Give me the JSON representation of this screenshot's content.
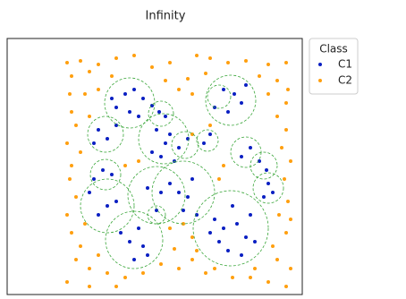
{
  "chart_data": {
    "type": "scatter",
    "title": "Infinity",
    "legend_title": "Class",
    "legend": "outside-right",
    "xlim": [
      0,
      330
    ],
    "ylim": [
      0,
      286
    ],
    "series": [
      {
        "name": "C1",
        "color": "#0a1fc2",
        "x": [
          132,
          142,
          152,
          122,
          137,
          147,
          117,
          162,
          170,
          177,
          102,
          112,
          97,
          122,
          167,
          177,
          182,
          192,
          202,
          162,
          187,
          172,
          227,
          220,
          242,
          254,
          262,
          247,
          232,
          267,
          272,
          262,
          282,
          290,
          292,
          297,
          287,
          107,
          117,
          97,
          112,
          102,
          122,
          92,
          157,
          172,
          182,
          192,
          202,
          207,
          197,
          212,
          167,
          147,
          137,
          152,
          127,
          157,
          142,
          232,
          242,
          257,
          267,
          237,
          247,
          262,
          272,
          227,
          252,
          277
        ],
        "y": [
          224,
          229,
          219,
          209,
          204,
          199,
          219,
          211,
          204,
          199,
          184,
          174,
          169,
          189,
          184,
          169,
          179,
          164,
          174,
          159,
          149,
          154,
          179,
          169,
          229,
          224,
          214,
          204,
          209,
          234,
          164,
          154,
          149,
          139,
          124,
          114,
          109,
          139,
          134,
          129,
          99,
          89,
          104,
          114,
          119,
          114,
          124,
          114,
          109,
          129,
          94,
          89,
          94,
          74,
          59,
          54,
          69,
          44,
          39,
          84,
          74,
          79,
          64,
          59,
          49,
          44,
          89,
          69,
          99,
          59
        ]
      },
      {
        "name": "C2",
        "color": "#ff9f0f",
        "x": [
          67,
          82,
          102,
          122,
          142,
          162,
          182,
          212,
          227,
          247,
          267,
          292,
          312,
          72,
          92,
          117,
          177,
          202,
          222,
          282,
          302,
          314,
          70,
          87,
          102,
          192,
          207,
          292,
          312,
          72,
          77,
          67,
          82,
          302,
          312,
          307,
          317,
          72,
          70,
          77,
          67,
          72,
          82,
          310,
          314,
          304,
          312,
          297,
          302,
          317,
          77,
          92,
          112,
          132,
          172,
          192,
          207,
          222,
          252,
          277,
          292,
          102,
          87,
          182,
          197,
          207,
          212,
          152,
          122,
          232,
          272,
          312,
          67,
          92,
          187,
          207,
          227,
          132,
          147,
          242,
          237,
          92,
          317
        ],
        "y": [
          259,
          261,
          257,
          264,
          267,
          254,
          259,
          267,
          264,
          259,
          261,
          257,
          259,
          244,
          249,
          244,
          239,
          241,
          247,
          244,
          239,
          229,
          224,
          224,
          229,
          229,
          224,
          224,
          214,
          204,
          189,
          169,
          159,
          199,
          184,
          164,
          149,
          144,
          129,
          109,
          89,
          69,
          54,
          129,
          104,
          89,
          69,
          54,
          39,
          29,
          39,
          29,
          24,
          19,
          34,
          29,
          39,
          24,
          19,
          29,
          14,
          44,
          79,
          74,
          79,
          64,
          49,
          24,
          9,
          29,
          19,
          9,
          14,
          9,
          51,
          179,
          189,
          144,
          149,
          144,
          129,
          199,
          84
        ]
      }
    ],
    "circles": {
      "color": "#3aa63a",
      "x": [
        137,
        172,
        110,
        175,
        199,
        224,
        250,
        237,
        267,
        287,
        292,
        110,
        112,
        167,
        197,
        142,
        250,
        167
      ],
      "y": [
        214,
        202,
        179,
        174,
        167,
        172,
        217,
        221,
        159,
        144,
        119,
        134,
        99,
        111,
        114,
        61,
        74,
        89
      ],
      "r": [
        28,
        14,
        20,
        28,
        15,
        12,
        28,
        13,
        17,
        15,
        17,
        17,
        30,
        32,
        35,
        32,
        42,
        10
      ]
    }
  }
}
